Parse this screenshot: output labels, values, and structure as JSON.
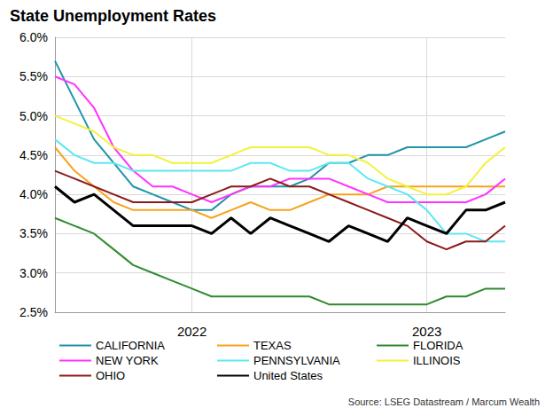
{
  "chart_data": {
    "type": "line",
    "title": "State Unemployment Rates",
    "source": "Source: LSEG Datastream / Marcum Wealth",
    "categories": [
      null,
      null,
      null,
      null,
      null,
      null,
      null,
      "2022",
      null,
      null,
      null,
      null,
      null,
      null,
      null,
      null,
      null,
      null,
      null,
      "2023",
      null,
      null,
      null,
      null
    ],
    "series": [
      {
        "name": "CALIFORNIA",
        "color": "#1f93a8",
        "values": [
          5.7,
          5.2,
          4.7,
          4.4,
          4.1,
          4.0,
          3.9,
          3.8,
          3.8,
          4.0,
          4.1,
          4.1,
          4.1,
          4.2,
          4.4,
          4.4,
          4.5,
          4.5,
          4.6,
          4.6,
          4.6,
          4.6,
          4.7,
          4.8
        ]
      },
      {
        "name": "TEXAS",
        "color": "#f7a21b",
        "values": [
          4.6,
          4.3,
          4.1,
          3.9,
          3.8,
          3.8,
          3.8,
          3.8,
          3.7,
          3.8,
          3.9,
          3.8,
          3.8,
          3.9,
          4.0,
          4.0,
          4.0,
          4.1,
          4.1,
          4.1,
          4.1,
          4.1,
          4.1,
          4.1
        ]
      },
      {
        "name": "FLORIDA",
        "color": "#2e8b2e",
        "values": [
          3.7,
          3.6,
          3.5,
          3.3,
          3.1,
          3.0,
          2.9,
          2.8,
          2.7,
          2.7,
          2.7,
          2.7,
          2.7,
          2.7,
          2.6,
          2.6,
          2.6,
          2.6,
          2.6,
          2.6,
          2.7,
          2.7,
          2.8,
          2.8
        ]
      },
      {
        "name": "NEW YORK",
        "color": "#ff33ff",
        "values": [
          5.5,
          5.4,
          5.1,
          4.6,
          4.3,
          4.1,
          4.1,
          4.0,
          3.9,
          4.0,
          4.1,
          4.1,
          4.2,
          4.2,
          4.2,
          4.1,
          4.0,
          3.9,
          3.9,
          3.9,
          3.9,
          3.9,
          4.0,
          4.2
        ]
      },
      {
        "name": "PENNSYLVANIA",
        "color": "#5ee8f2",
        "values": [
          4.7,
          4.5,
          4.4,
          4.4,
          4.3,
          4.3,
          4.3,
          4.3,
          4.3,
          4.3,
          4.4,
          4.4,
          4.3,
          4.3,
          4.4,
          4.4,
          4.2,
          4.1,
          4.0,
          3.8,
          3.5,
          3.5,
          3.4,
          3.4
        ]
      },
      {
        "name": "ILLINOIS",
        "color": "#f2f23a",
        "values": [
          5.0,
          4.9,
          4.8,
          4.6,
          4.5,
          4.5,
          4.4,
          4.4,
          4.4,
          4.5,
          4.6,
          4.6,
          4.6,
          4.6,
          4.5,
          4.5,
          4.4,
          4.2,
          4.1,
          4.0,
          4.0,
          4.1,
          4.4,
          4.6
        ]
      },
      {
        "name": "OHIO",
        "color": "#8b1a1a",
        "values": [
          4.3,
          4.2,
          4.1,
          4.0,
          3.9,
          3.9,
          3.9,
          3.9,
          4.0,
          4.1,
          4.1,
          4.2,
          4.1,
          4.1,
          4.0,
          3.9,
          3.8,
          3.7,
          3.6,
          3.4,
          3.3,
          3.4,
          3.4,
          3.6
        ]
      },
      {
        "name": "United States",
        "color": "#000000",
        "values": [
          4.1,
          3.9,
          4.0,
          3.8,
          3.6,
          3.6,
          3.6,
          3.6,
          3.5,
          3.7,
          3.5,
          3.7,
          3.6,
          3.5,
          3.4,
          3.6,
          3.5,
          3.4,
          3.7,
          3.6,
          3.5,
          3.8,
          3.8,
          3.9
        ]
      }
    ],
    "ylim": [
      2.5,
      6.0
    ],
    "yticks": [
      {
        "value": 2.5,
        "label": "2.5%"
      },
      {
        "value": 3.0,
        "label": "3.0%"
      },
      {
        "value": 3.5,
        "label": "3.5%"
      },
      {
        "value": 4.0,
        "label": "4.0%"
      },
      {
        "value": 4.5,
        "label": "4.5%"
      },
      {
        "value": 5.0,
        "label": "5.0%"
      },
      {
        "value": 5.5,
        "label": "5.5%"
      },
      {
        "value": 6.0,
        "label": "6.0%"
      }
    ],
    "grid": true,
    "legend": "bottom"
  }
}
